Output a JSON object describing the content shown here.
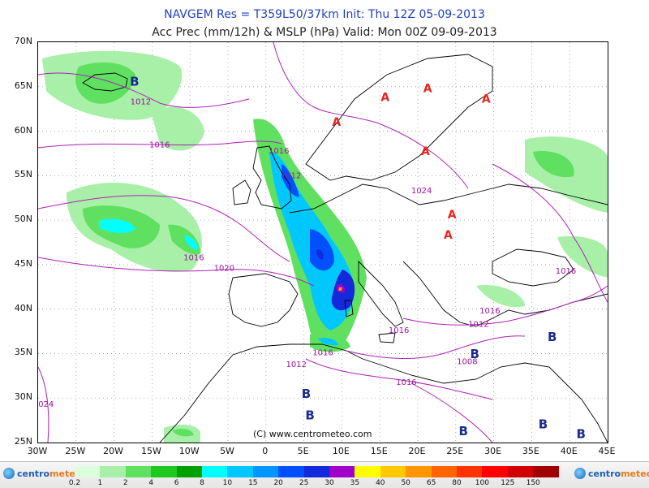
{
  "header": {
    "line1": "NAVGEM Res = T359L50/37km   Init: Thu 12Z 05-09-2013",
    "line2": "Acc Prec (mm/12h) & MSLP (hPa)   Valid: Mon 00Z 09-09-2013"
  },
  "axes": {
    "lat_labels": [
      "70N",
      "65N",
      "60N",
      "55N",
      "50N",
      "45N",
      "40N",
      "35N",
      "30N",
      "25N"
    ],
    "lon_labels": [
      "30W",
      "25W",
      "20W",
      "15W",
      "10W",
      "5W",
      "0",
      "5E",
      "10E",
      "15E",
      "20E",
      "25E",
      "30E",
      "35E",
      "40E",
      "45E"
    ]
  },
  "pressure_labels": [
    {
      "text": "1012",
      "lon": -16.5,
      "lat": 63.0
    },
    {
      "text": "1016",
      "lon": -14.0,
      "lat": 58.2
    },
    {
      "text": "1016",
      "lon": 1.7,
      "lat": 57.5
    },
    {
      "text": "1012",
      "lon": 3.3,
      "lat": 54.7
    },
    {
      "text": "1024",
      "lon": 20.5,
      "lat": 53.0
    },
    {
      "text": "1016",
      "lon": -9.5,
      "lat": 45.5
    },
    {
      "text": "1020",
      "lon": -5.5,
      "lat": 44.3
    },
    {
      "text": "1016",
      "lon": 39.5,
      "lat": 44.0
    },
    {
      "text": "1016",
      "lon": 29.5,
      "lat": 39.5
    },
    {
      "text": "1012",
      "lon": 28.0,
      "lat": 38.0
    },
    {
      "text": "1016",
      "lon": 17.5,
      "lat": 37.3
    },
    {
      "text": "1016",
      "lon": 7.5,
      "lat": 34.8
    },
    {
      "text": "1012",
      "lon": 4.0,
      "lat": 33.5
    },
    {
      "text": "1008",
      "lon": 26.5,
      "lat": 33.8
    },
    {
      "text": "1016",
      "lon": 18.5,
      "lat": 31.5
    },
    {
      "text": "1024",
      "lon": -29.3,
      "lat": 29.0
    }
  ],
  "pressure_centers": [
    {
      "type": "B",
      "lon": -17.3,
      "lat": 65.1
    },
    {
      "type": "A",
      "lon": 9.3,
      "lat": 60.6
    },
    {
      "type": "A",
      "lon": 15.7,
      "lat": 63.4
    },
    {
      "type": "A",
      "lon": 21.3,
      "lat": 64.4
    },
    {
      "type": "A",
      "lon": 29.0,
      "lat": 63.2
    },
    {
      "type": "A",
      "lon": 21.0,
      "lat": 57.3
    },
    {
      "type": "A",
      "lon": 24.5,
      "lat": 50.2
    },
    {
      "type": "A",
      "lon": 24.0,
      "lat": 47.9
    },
    {
      "type": "B",
      "lon": 37.7,
      "lat": 36.4
    },
    {
      "type": "B",
      "lon": 27.5,
      "lat": 34.5
    },
    {
      "type": "B",
      "lon": 5.3,
      "lat": 30.0
    },
    {
      "type": "B",
      "lon": 5.8,
      "lat": 27.6
    },
    {
      "type": "B",
      "lon": 36.5,
      "lat": 26.6
    },
    {
      "type": "B",
      "lon": 26.0,
      "lat": 25.8
    },
    {
      "type": "B",
      "lon": 41.5,
      "lat": 25.5
    }
  ],
  "copyright": "(C) www.centrometeo.com",
  "legend": {
    "logo_left": [
      "centro",
      "meteo"
    ],
    "logo_right": [
      "centro",
      "meteo"
    ],
    "levels": [
      "0.2",
      "1",
      "2",
      "4",
      "6",
      "8",
      "10",
      "15",
      "20",
      "25",
      "30",
      "35",
      "40",
      "50",
      "65",
      "80",
      "100",
      "125",
      "150"
    ],
    "colors": [
      "#dcffdc",
      "#a8f0a8",
      "#60e060",
      "#1ec81e",
      "#00a000",
      "#00ffff",
      "#00c8ff",
      "#0096ff",
      "#0050ff",
      "#1428dc",
      "#a000c8",
      "#ffff00",
      "#ffc800",
      "#ff9600",
      "#ff6400",
      "#ff3200",
      "#ff0000",
      "#d20000",
      "#a00000"
    ]
  },
  "colors": {
    "center_A": "#e8251c",
    "center_B": "#1a2a8c",
    "isobar": "#b020b8",
    "isobar_label": "#a0109f"
  }
}
